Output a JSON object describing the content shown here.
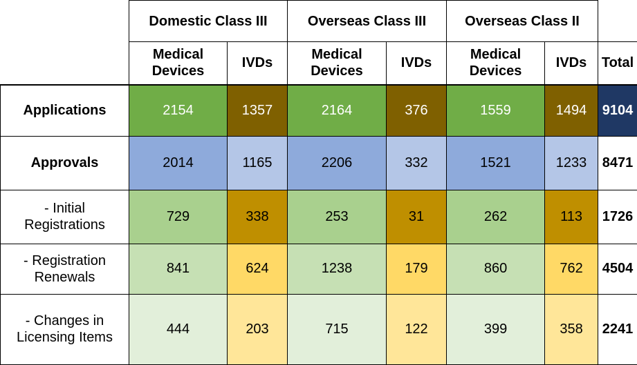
{
  "header": {
    "groups": [
      "Domestic Class III",
      "Overseas Class III",
      "Overseas Class II"
    ],
    "sub": [
      "Medical\nDevices",
      "IVDs",
      "Medical\nDevices",
      "IVDs",
      "Medical\nDevices",
      "IVDs"
    ],
    "total": "Total"
  },
  "rows": [
    {
      "label": "Applications",
      "values": [
        "2154",
        "1357",
        "2164",
        "376",
        "1559",
        "1494"
      ],
      "total": "9104"
    },
    {
      "label": "Approvals",
      "values": [
        "2014",
        "1165",
        "2206",
        "332",
        "1521",
        "1233"
      ],
      "total": "8471"
    },
    {
      "label": "- Initial Registrations",
      "label_l1": "- Initial",
      "label_l2": "Registrations",
      "values": [
        "729",
        "338",
        "253",
        "31",
        "262",
        "113"
      ],
      "total": "1726"
    },
    {
      "label": "- Registration Renewals",
      "label_l1": "- Registration",
      "label_l2": "Renewals",
      "values": [
        "841",
        "624",
        "1238",
        "179",
        "860",
        "762"
      ],
      "total": "4504"
    },
    {
      "label": "- Changes in Licensing Items",
      "label_l1": "- Changes in",
      "label_l2": "Licensing Items",
      "values": [
        "444",
        "203",
        "715",
        "122",
        "399",
        "358"
      ],
      "total": "2241"
    }
  ],
  "colors": {
    "applications_md": "#70ad47",
    "applications_ivd": "#7f6000",
    "applications_total": "#1f3864",
    "approvals_md": "#8eaadb",
    "approvals_ivd": "#b4c6e7",
    "initial_md": "#a9d08e",
    "initial_ivd": "#bf8f00",
    "renewals_md": "#c6e0b4",
    "renewals_ivd": "#ffd966",
    "changes_md": "#e2efda",
    "changes_ivd": "#ffe699"
  }
}
